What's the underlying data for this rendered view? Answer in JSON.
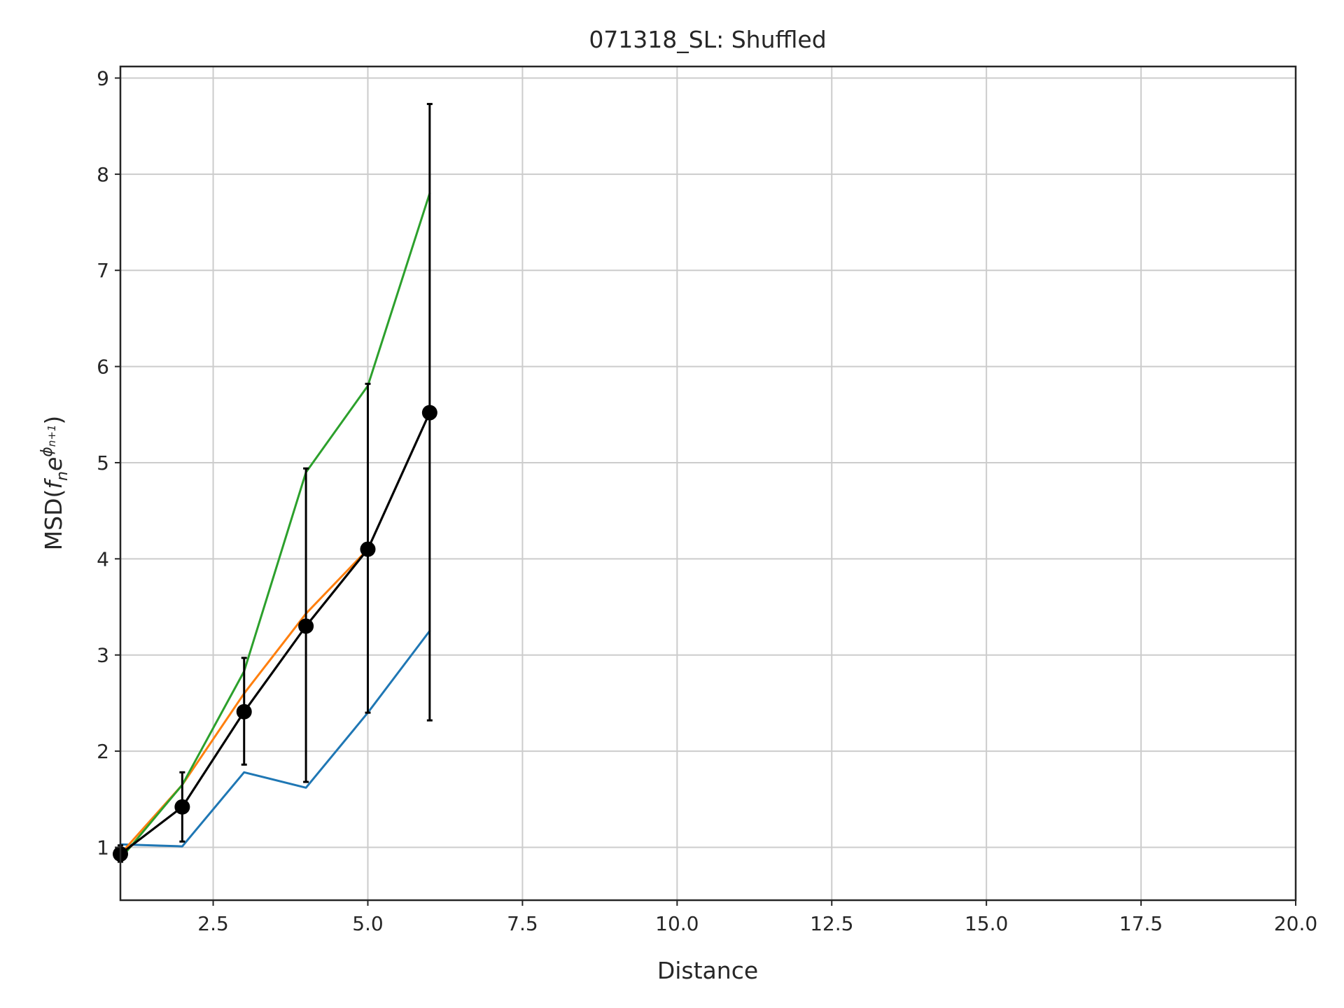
{
  "chart_data": {
    "type": "line",
    "title": "071318_SL: Shuffled",
    "xlabel": "Distance",
    "ylabel": {
      "prefix": "MSD(",
      "f": "f",
      "n_sub": "n",
      "e": "e",
      "phi": "ϕ",
      "sup_sub": "n+1",
      "suffix": ")"
    },
    "xlim": [
      1,
      20
    ],
    "ylim": [
      0.45,
      9.12
    ],
    "x_ticks": [
      2.5,
      5.0,
      7.5,
      10.0,
      12.5,
      15.0,
      17.5,
      20.0
    ],
    "x_tick_labels": [
      "2.5",
      "5.0",
      "7.5",
      "10.0",
      "12.5",
      "15.0",
      "17.5",
      "20.0"
    ],
    "y_ticks": [
      1,
      2,
      3,
      4,
      5,
      6,
      7,
      8,
      9
    ],
    "y_tick_labels": [
      "1",
      "2",
      "3",
      "4",
      "5",
      "6",
      "7",
      "8",
      "9"
    ],
    "grid": true,
    "series": [
      {
        "color": "#1f77b4",
        "x": [
          1,
          2,
          3,
          4,
          5,
          6
        ],
        "y": [
          1.03,
          1.01,
          1.78,
          1.62,
          2.4,
          3.25
        ]
      },
      {
        "color": "#ff7f0e",
        "x": [
          1,
          2,
          3,
          4,
          5
        ],
        "y": [
          0.93,
          1.65,
          2.6,
          3.43,
          4.1
        ]
      },
      {
        "color": "#2ca02c",
        "x": [
          1,
          2,
          3,
          4,
          5,
          6
        ],
        "y": [
          0.88,
          1.65,
          2.83,
          4.9,
          5.8,
          7.8
        ]
      },
      {
        "color": "#000000",
        "markers": true,
        "x": [
          1,
          2,
          3,
          4,
          5,
          6
        ],
        "y": [
          0.93,
          1.42,
          2.41,
          3.3,
          4.1,
          5.52
        ],
        "err_low": [
          0.85,
          1.06,
          1.86,
          1.68,
          2.4,
          2.32
        ],
        "err_high": [
          1.02,
          1.78,
          2.97,
          4.94,
          5.82,
          8.73
        ]
      }
    ]
  }
}
